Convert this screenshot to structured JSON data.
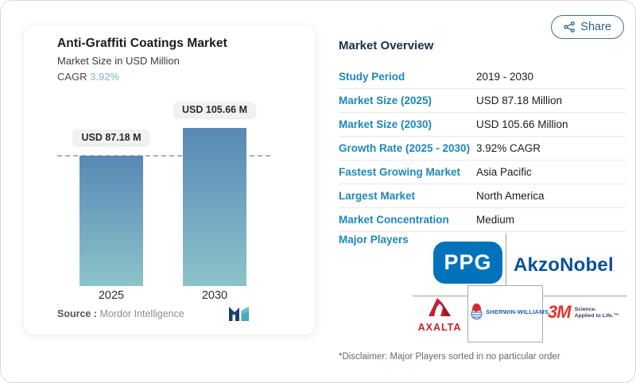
{
  "page": {
    "share_label": "Share"
  },
  "chart": {
    "title": "Anti-Graffiti Coatings Market",
    "subtitle": "Market Size in USD Million",
    "cagr_label": "CAGR",
    "cagr_value": "3.92%",
    "bar_labels": [
      "USD 87.18 M",
      "USD 105.66 M"
    ],
    "x_labels": [
      "2025",
      "2030"
    ],
    "source_label": "Source :",
    "source_name": "Mordor Intelligence"
  },
  "chart_data": {
    "type": "bar",
    "categories": [
      "2025",
      "2030"
    ],
    "values": [
      87.18,
      105.66
    ],
    "title": "Anti-Graffiti Coatings Market",
    "ylabel": "Market Size in USD Million",
    "data_labels": [
      "USD 87.18 M",
      "USD 105.66 M"
    ],
    "annotation": "CAGR 3.92%",
    "reference_line_value": 87.18,
    "bar_gradient": [
      "#5888b5",
      "#8dc3c9"
    ],
    "grid": false,
    "source": "Mordor Intelligence"
  },
  "overview": {
    "title": "Market Overview",
    "rows": [
      {
        "label": "Study Period",
        "value": "2019 - 2030"
      },
      {
        "label": "Market Size (2025)",
        "value": "USD 87.18 Million"
      },
      {
        "label": "Market Size (2030)",
        "value": "USD 105.66 Million"
      },
      {
        "label": "Growth Rate (2025 - 2030)",
        "value": "3.92% CAGR"
      },
      {
        "label": "Fastest Growing Market",
        "value": "Asia Pacific"
      },
      {
        "label": "Largest Market",
        "value": "North America"
      },
      {
        "label": "Market Concentration",
        "value": "Medium"
      }
    ],
    "major_players_label": "Major Players",
    "players": {
      "ppg": {
        "wordmark": "PPG"
      },
      "akzonobel": {
        "wordmark": "AkzoNobel"
      },
      "axalta": {
        "wordmark": "AXALTA"
      },
      "sherwin_williams": {
        "wordmark": "SHERWIN-WILLIAMS."
      },
      "threem": {
        "wordmark": "3M",
        "tagline_line1": "Science.",
        "tagline_line2": "Applied to Life.™"
      }
    },
    "disclaimer": "*Disclaimer: Major Players sorted in no particular order"
  },
  "colors": {
    "accent_blue": "#1d87ba",
    "heading_navy": "#15314b",
    "cagr_blue": "#85aecb",
    "bar_top": "#5888b5",
    "bar_bottom": "#8dc3c9",
    "dashed_line": "#a9b1b6",
    "ppg_blue": "#0273ba",
    "akzonobel_blue": "#0a5296",
    "axalta_red": "#c32032",
    "sherwin_blue": "#1b5faa",
    "mmm_red": "#e3342b",
    "share_teal": "#2d6380"
  }
}
